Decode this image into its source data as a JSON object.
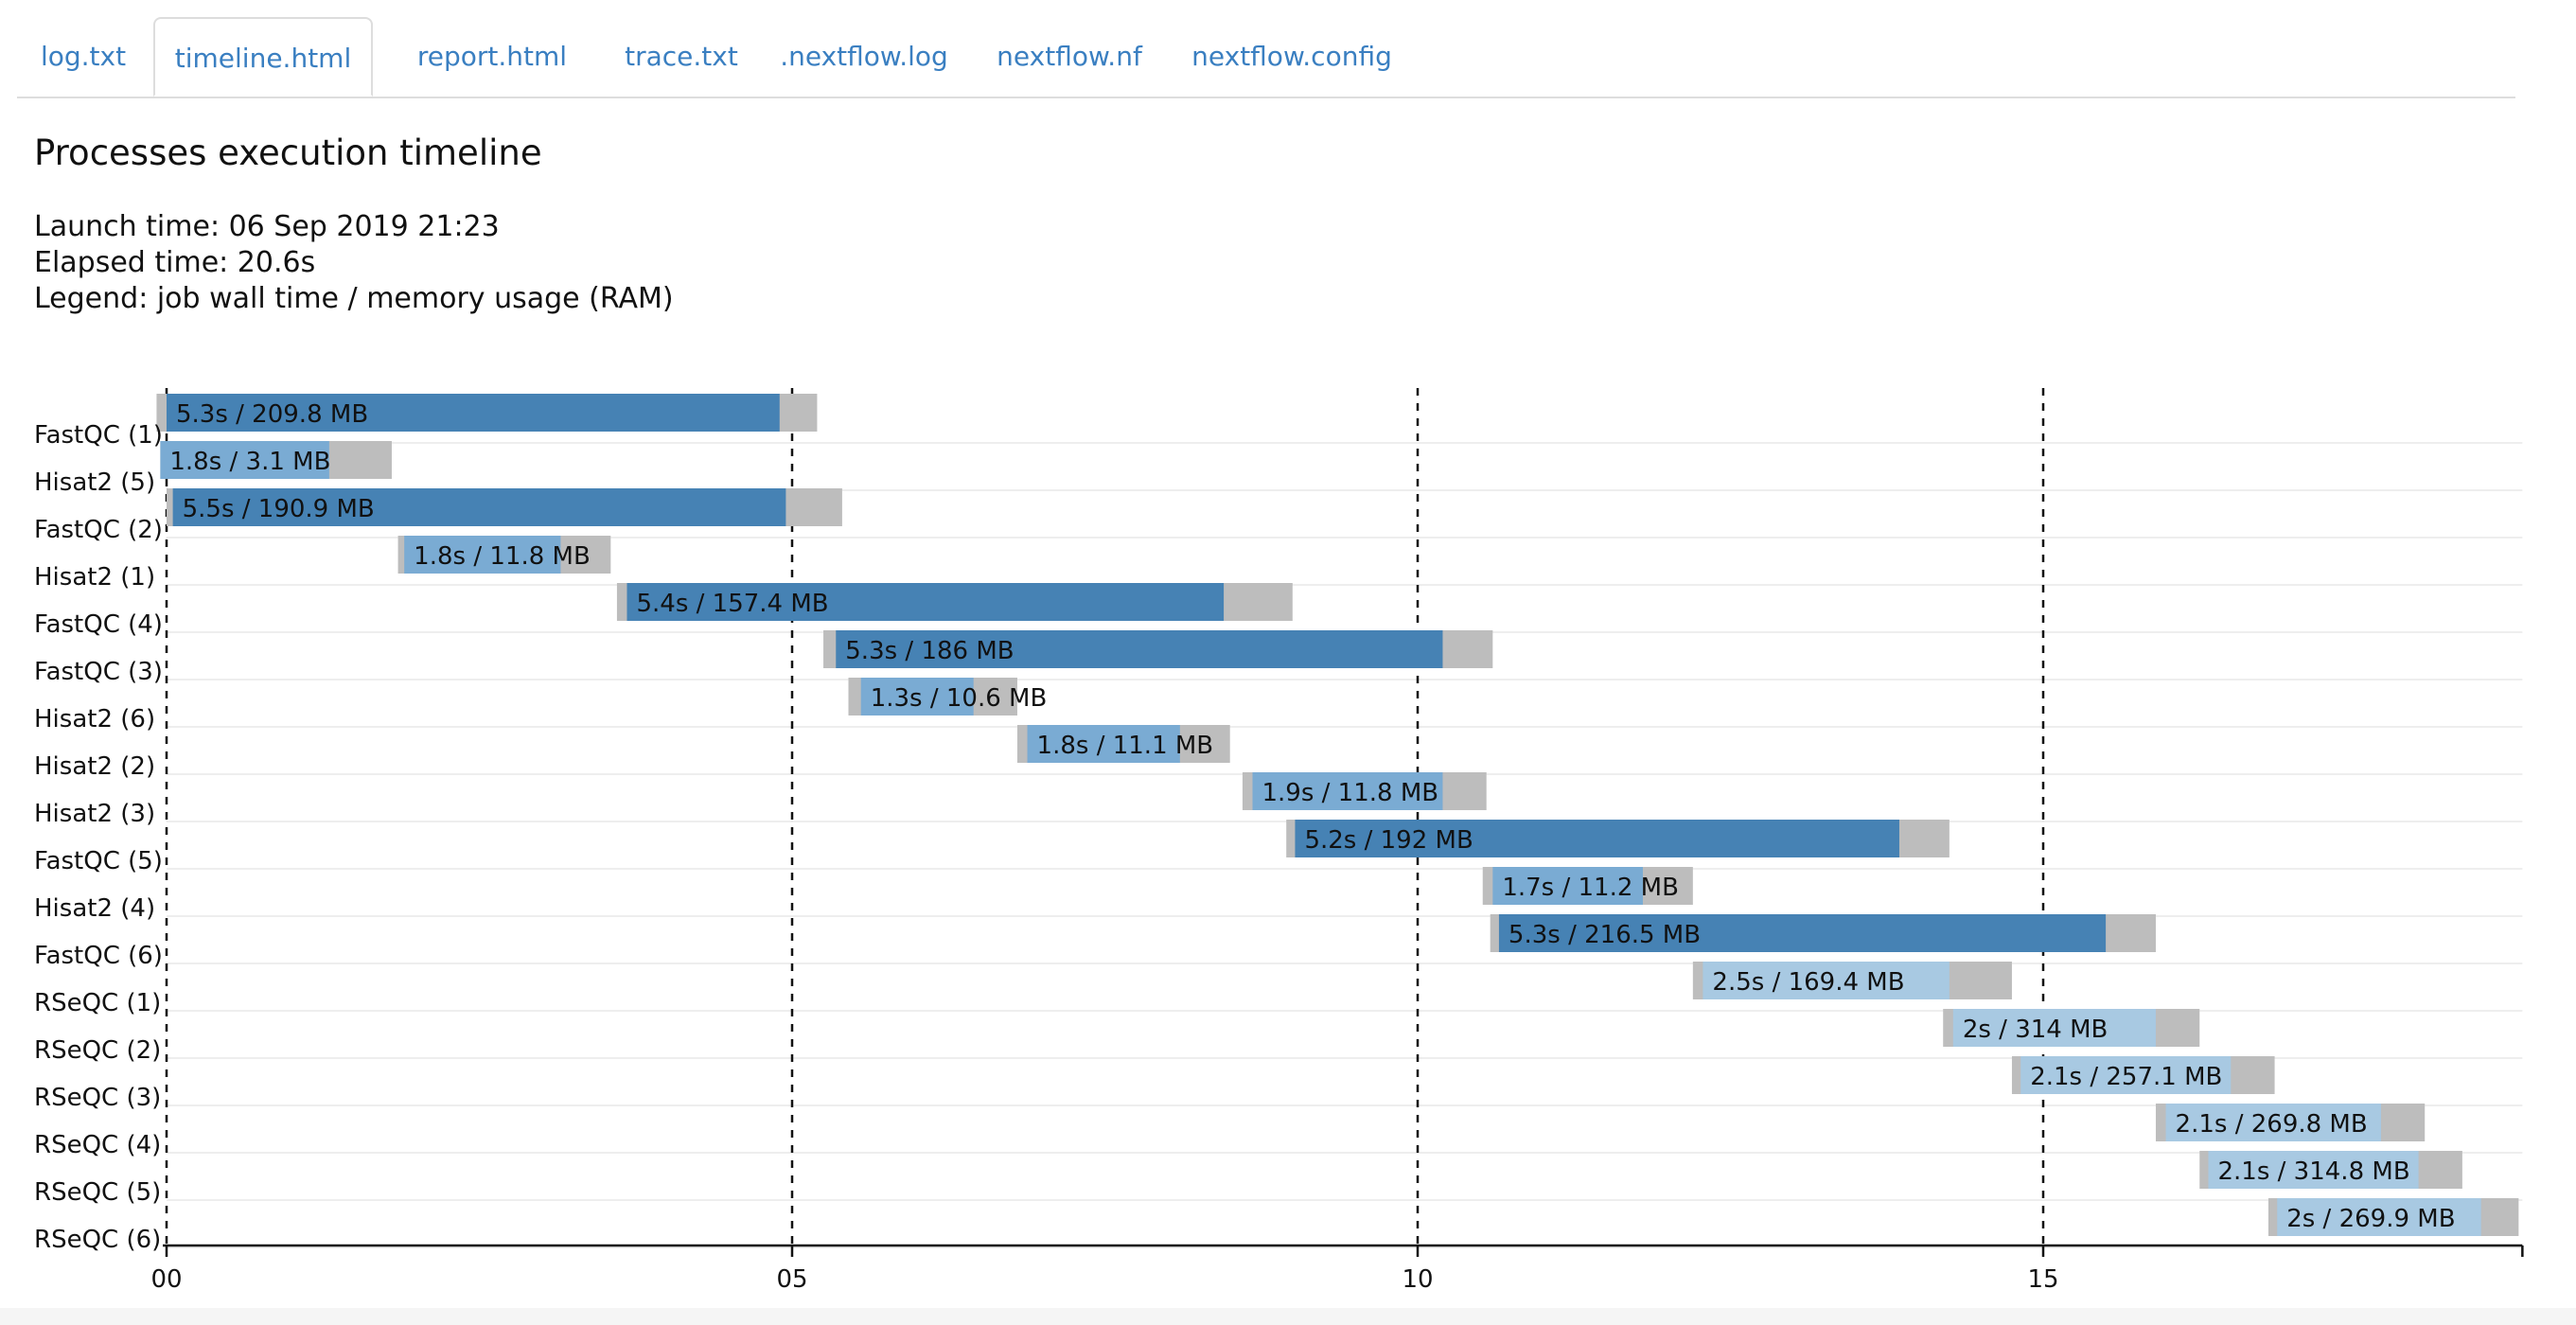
{
  "tabs": [
    {
      "label": "log.txt",
      "active": false
    },
    {
      "label": "timeline.html",
      "active": true
    },
    {
      "label": "report.html",
      "active": false
    },
    {
      "label": "trace.txt",
      "active": false
    },
    {
      "label": ".nextflow.log",
      "active": false
    },
    {
      "label": "nextflow.nf",
      "active": false
    },
    {
      "label": "nextflow.config",
      "active": false
    }
  ],
  "page": {
    "title": "Processes execution timeline",
    "launch_time": "Launch time: 06 Sep 2019 21:23",
    "elapsed_time": "Elapsed time: 20.6s",
    "legend": "Legend: job wall time / memory usage (RAM)"
  },
  "colors": {
    "fastqc": "#4682b4",
    "hisat2": "#7aabd3",
    "rseqc": "#a8c9e2",
    "wait": "#bdbdbd",
    "tab_text": "#3a7fc1"
  },
  "chart_data": {
    "type": "timeline",
    "x_ticks": [
      "00",
      "05",
      "10",
      "15"
    ],
    "xlim": [
      0,
      18.8
    ],
    "grid": "dashed vertical at ticks",
    "tasks": [
      {
        "name": "FastQC (1)",
        "submit": -0.08,
        "start": 0.0,
        "end": 4.9,
        "complete": 5.2,
        "label": "5.3s / 209.8 MB",
        "process": "fastqc"
      },
      {
        "name": "Hisat2 (5)",
        "submit": -0.05,
        "start": -0.05,
        "end": 1.3,
        "complete": 1.8,
        "label": "1.8s / 3.1 MB",
        "process": "hisat2"
      },
      {
        "name": "FastQC (2)",
        "submit": 0.0,
        "start": 0.05,
        "end": 4.95,
        "complete": 5.4,
        "label": "5.5s / 190.9 MB",
        "process": "fastqc"
      },
      {
        "name": "Hisat2 (1)",
        "submit": 1.85,
        "start": 1.9,
        "end": 3.15,
        "complete": 3.55,
        "label": "1.8s / 11.8 MB",
        "process": "hisat2"
      },
      {
        "name": "FastQC (4)",
        "submit": 3.6,
        "start": 3.68,
        "end": 8.45,
        "complete": 9.0,
        "label": "5.4s / 157.4 MB",
        "process": "fastqc"
      },
      {
        "name": "FastQC (3)",
        "submit": 5.25,
        "start": 5.35,
        "end": 10.2,
        "complete": 10.6,
        "label": "5.3s / 186 MB",
        "process": "fastqc"
      },
      {
        "name": "Hisat2 (6)",
        "submit": 5.45,
        "start": 5.55,
        "end": 6.45,
        "complete": 6.8,
        "label": "1.3s / 10.6 MB",
        "process": "hisat2"
      },
      {
        "name": "Hisat2 (2)",
        "submit": 6.8,
        "start": 6.88,
        "end": 8.1,
        "complete": 8.5,
        "label": "1.8s / 11.1 MB",
        "process": "hisat2"
      },
      {
        "name": "Hisat2 (3)",
        "submit": 8.6,
        "start": 8.68,
        "end": 10.2,
        "complete": 10.55,
        "label": "1.9s / 11.8 MB",
        "process": "hisat2"
      },
      {
        "name": "FastQC (5)",
        "submit": 8.95,
        "start": 9.02,
        "end": 13.85,
        "complete": 14.25,
        "label": "5.2s / 192 MB",
        "process": "fastqc"
      },
      {
        "name": "Hisat2 (4)",
        "submit": 10.52,
        "start": 10.6,
        "end": 11.8,
        "complete": 12.2,
        "label": "1.7s / 11.2 MB",
        "process": "hisat2"
      },
      {
        "name": "FastQC (6)",
        "submit": 10.58,
        "start": 10.65,
        "end": 15.5,
        "complete": 15.9,
        "label": "5.3s / 216.5 MB",
        "process": "fastqc"
      },
      {
        "name": "RSeQC (1)",
        "submit": 12.2,
        "start": 12.28,
        "end": 14.25,
        "complete": 14.75,
        "label": "2.5s / 169.4 MB",
        "process": "rseqc"
      },
      {
        "name": "RSeQC (2)",
        "submit": 14.2,
        "start": 14.28,
        "end": 15.9,
        "complete": 16.25,
        "label": "2s / 314 MB",
        "process": "rseqc"
      },
      {
        "name": "RSeQC (3)",
        "submit": 14.75,
        "start": 14.82,
        "end": 16.5,
        "complete": 16.85,
        "label": "2.1s / 257.1 MB",
        "process": "rseqc"
      },
      {
        "name": "RSeQC (4)",
        "submit": 15.9,
        "start": 15.98,
        "end": 17.7,
        "complete": 18.05,
        "label": "2.1s / 269.8 MB",
        "process": "rseqc"
      },
      {
        "name": "RSeQC (5)",
        "submit": 16.25,
        "start": 16.32,
        "end": 18.0,
        "complete": 18.35,
        "label": "2.1s / 314.8 MB",
        "process": "rseqc"
      },
      {
        "name": "RSeQC (6)",
        "submit": 16.8,
        "start": 16.87,
        "end": 18.5,
        "complete": 18.8,
        "label": "2s / 269.9 MB",
        "process": "rseqc"
      }
    ]
  }
}
